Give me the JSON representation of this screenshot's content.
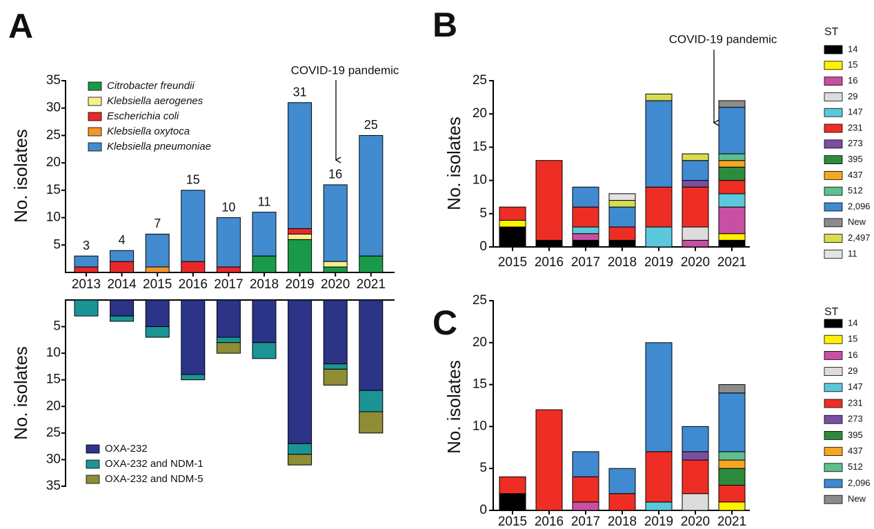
{
  "chart_data": [
    {
      "type": "bar",
      "panel_label": "A",
      "y_label": "No. isolates",
      "annotation": "COVID-19 pandemic",
      "categories": [
        "2013",
        "2014",
        "2015",
        "2016",
        "2017",
        "2018",
        "2019",
        "2020",
        "2021"
      ],
      "ylim": [
        0,
        35
      ],
      "yticks": [
        5,
        10,
        15,
        20,
        25,
        30,
        35
      ],
      "totals": [
        3,
        4,
        7,
        15,
        10,
        11,
        31,
        16,
        25
      ],
      "series": [
        {
          "name": "Citrobacter freundii",
          "color": "#1a9a48",
          "values": [
            0,
            0,
            0,
            0,
            0,
            3,
            6,
            1,
            3
          ]
        },
        {
          "name": "Klebsiella aerogenes",
          "color": "#f5f08a",
          "values": [
            0,
            0,
            0,
            0,
            0,
            0,
            1,
            1,
            0
          ]
        },
        {
          "name": "Escherichia coli",
          "color": "#e8292b",
          "values": [
            1,
            2,
            0,
            2,
            1,
            0,
            1,
            0,
            0
          ]
        },
        {
          "name": "Klebsiella oxytoca",
          "color": "#f3962a",
          "values": [
            0,
            0,
            1,
            0,
            0,
            0,
            0,
            0,
            0
          ]
        },
        {
          "name": "Klebsiella pneumoniae",
          "color": "#428bcf",
          "values": [
            2,
            2,
            6,
            13,
            9,
            8,
            23,
            14,
            22
          ]
        }
      ]
    },
    {
      "type": "bar",
      "y_label": "No. isolates",
      "inverted": true,
      "ylim": [
        0,
        35
      ],
      "yticks": [
        5,
        10,
        15,
        20,
        25,
        30,
        35
      ],
      "series": [
        {
          "name": "OXA-232",
          "color": "#2b3487",
          "values": [
            0,
            3,
            5,
            14,
            7,
            8,
            27,
            12,
            17
          ]
        },
        {
          "name": "OXA-232 and NDM-1",
          "color": "#1c9496",
          "values": [
            3,
            1,
            2,
            1,
            1,
            3,
            2,
            1,
            4
          ]
        },
        {
          "name": "OXA-232 and NDM-5",
          "color": "#8f8d35",
          "values": [
            0,
            0,
            0,
            0,
            2,
            0,
            2,
            3,
            4
          ]
        }
      ]
    },
    {
      "type": "bar",
      "panel_label": "B",
      "y_label": "No. isolates",
      "annotation": "COVID-19 pandemic",
      "legend_title": "ST",
      "categories": [
        "2015",
        "2016",
        "2017",
        "2018",
        "2019",
        "2020",
        "2021"
      ],
      "ylim": [
        0,
        25
      ],
      "yticks": [
        0,
        5,
        10,
        15,
        20,
        25
      ],
      "series": [
        {
          "name": "14",
          "color": "#000000",
          "values": [
            3,
            1,
            1,
            1,
            0,
            0,
            1
          ]
        },
        {
          "name": "15",
          "color": "#fff200",
          "values": [
            1,
            0,
            0,
            0,
            0,
            0,
            1
          ]
        },
        {
          "name": "16",
          "color": "#c94fa3",
          "values": [
            0,
            0,
            1,
            0,
            0,
            1,
            4
          ]
        },
        {
          "name": "29",
          "color": "#dcdcdc",
          "values": [
            0,
            0,
            0,
            0,
            0,
            2,
            0
          ]
        },
        {
          "name": "147",
          "color": "#5bc8dc",
          "values": [
            0,
            0,
            1,
            0,
            3,
            0,
            2
          ]
        },
        {
          "name": "231",
          "color": "#ee2e24",
          "values": [
            2,
            12,
            3,
            2,
            6,
            6,
            2
          ]
        },
        {
          "name": "273",
          "color": "#7b4fa0",
          "values": [
            0,
            0,
            0,
            0,
            0,
            1,
            0
          ]
        },
        {
          "name": "395",
          "color": "#2e8b3e",
          "values": [
            0,
            0,
            0,
            0,
            0,
            0,
            2
          ]
        },
        {
          "name": "437",
          "color": "#f5a623",
          "values": [
            0,
            0,
            0,
            0,
            0,
            0,
            1
          ]
        },
        {
          "name": "512",
          "color": "#5fbf8f",
          "values": [
            0,
            0,
            0,
            0,
            0,
            0,
            1
          ]
        },
        {
          "name": "2,096",
          "color": "#3f8ad0",
          "values": [
            0,
            0,
            3,
            3,
            13,
            3,
            7
          ]
        },
        {
          "name": "New",
          "color": "#8c8c8c",
          "values": [
            0,
            0,
            0,
            0,
            0,
            0,
            1
          ]
        },
        {
          "name": "2,497",
          "color": "#d8dc50",
          "values": [
            0,
            0,
            0,
            1,
            1,
            1,
            0
          ]
        },
        {
          "name": "11",
          "color": "#e3e3e3",
          "values": [
            0,
            0,
            0,
            1,
            0,
            0,
            0
          ]
        }
      ]
    },
    {
      "type": "bar",
      "panel_label": "C",
      "y_label": "No. isolates",
      "legend_title": "ST",
      "categories": [
        "2015",
        "2016",
        "2017",
        "2018",
        "2019",
        "2020",
        "2021"
      ],
      "ylim": [
        0,
        25
      ],
      "yticks": [
        0,
        5,
        10,
        15,
        20,
        25
      ],
      "series": [
        {
          "name": "14",
          "color": "#000000",
          "values": [
            2,
            0,
            0,
            0,
            0,
            0,
            0
          ]
        },
        {
          "name": "15",
          "color": "#fff200",
          "values": [
            0,
            0,
            0,
            0,
            0,
            0,
            1
          ]
        },
        {
          "name": "16",
          "color": "#c94fa3",
          "values": [
            0,
            0,
            1,
            0,
            0,
            0,
            0
          ]
        },
        {
          "name": "29",
          "color": "#dcdcdc",
          "values": [
            0,
            0,
            0,
            0,
            0,
            2,
            0
          ]
        },
        {
          "name": "147",
          "color": "#5bc8dc",
          "values": [
            0,
            0,
            0,
            0,
            1,
            0,
            0
          ]
        },
        {
          "name": "231",
          "color": "#ee2e24",
          "values": [
            2,
            12,
            3,
            2,
            6,
            4,
            2
          ]
        },
        {
          "name": "273",
          "color": "#7b4fa0",
          "values": [
            0,
            0,
            0,
            0,
            0,
            1,
            0
          ]
        },
        {
          "name": "395",
          "color": "#2e8b3e",
          "values": [
            0,
            0,
            0,
            0,
            0,
            0,
            2
          ]
        },
        {
          "name": "437",
          "color": "#f5a623",
          "values": [
            0,
            0,
            0,
            0,
            0,
            0,
            1
          ]
        },
        {
          "name": "512",
          "color": "#5fbf8f",
          "values": [
            0,
            0,
            0,
            0,
            0,
            0,
            1
          ]
        },
        {
          "name": "2,096",
          "color": "#3f8ad0",
          "values": [
            0,
            0,
            3,
            3,
            13,
            3,
            7
          ]
        },
        {
          "name": "New",
          "color": "#8c8c8c",
          "values": [
            0,
            0,
            0,
            0,
            0,
            0,
            1
          ]
        }
      ]
    }
  ]
}
